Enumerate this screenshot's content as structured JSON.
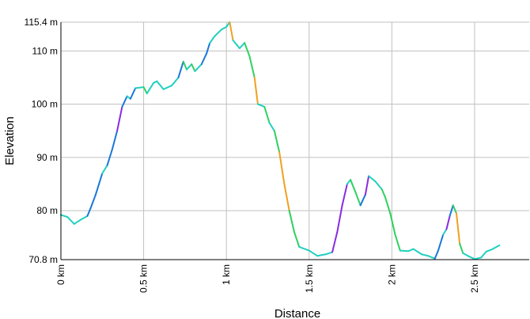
{
  "chart_data": {
    "type": "line",
    "xlabel": "Distance",
    "ylabel": "Elevation",
    "xlim": [
      0,
      2.83
    ],
    "ylim": [
      70.8,
      115.4
    ],
    "y_ticks": [
      {
        "value": 70.8,
        "label": "70.8 m"
      },
      {
        "value": 80,
        "label": "80 m"
      },
      {
        "value": 90,
        "label": "90 m"
      },
      {
        "value": 100,
        "label": "100 m"
      },
      {
        "value": 110,
        "label": "110 m"
      },
      {
        "value": 115.4,
        "label": "115.4 m"
      }
    ],
    "x_ticks": [
      {
        "value": 0,
        "label": "0 km"
      },
      {
        "value": 0.5,
        "label": "0.5 km"
      },
      {
        "value": 1,
        "label": "1 km"
      },
      {
        "value": 1.5,
        "label": "1.5 km"
      },
      {
        "value": 2,
        "label": "2 km"
      },
      {
        "value": 2.5,
        "label": "2.5 km"
      }
    ],
    "grid": true,
    "series": [
      {
        "points": [
          [
            0.0,
            79.2
          ],
          [
            0.04,
            78.8
          ],
          [
            0.08,
            77.5
          ],
          [
            0.12,
            78.3
          ],
          [
            0.16,
            79.0
          ],
          [
            0.18,
            80.5
          ],
          [
            0.21,
            83.0
          ],
          [
            0.25,
            87.0
          ],
          [
            0.28,
            88.5
          ],
          [
            0.31,
            91.5
          ],
          [
            0.34,
            95.0
          ],
          [
            0.37,
            99.5
          ],
          [
            0.4,
            101.5
          ],
          [
            0.42,
            101.0
          ],
          [
            0.45,
            103.0
          ],
          [
            0.5,
            103.2
          ],
          [
            0.52,
            102.0
          ],
          [
            0.56,
            104.0
          ],
          [
            0.58,
            104.3
          ],
          [
            0.62,
            102.8
          ],
          [
            0.67,
            103.5
          ],
          [
            0.71,
            105.0
          ],
          [
            0.74,
            108.0
          ],
          [
            0.76,
            106.5
          ],
          [
            0.79,
            107.5
          ],
          [
            0.81,
            106.2
          ],
          [
            0.85,
            107.5
          ],
          [
            0.88,
            109.5
          ],
          [
            0.9,
            111.5
          ],
          [
            0.93,
            112.8
          ],
          [
            0.97,
            114.0
          ],
          [
            1.0,
            114.5
          ],
          [
            1.02,
            115.4
          ],
          [
            1.04,
            112.0
          ],
          [
            1.08,
            110.5
          ],
          [
            1.11,
            111.5
          ],
          [
            1.14,
            109.0
          ],
          [
            1.17,
            105.0
          ],
          [
            1.19,
            100.0
          ],
          [
            1.23,
            99.5
          ],
          [
            1.26,
            96.5
          ],
          [
            1.29,
            95.0
          ],
          [
            1.32,
            91.0
          ],
          [
            1.35,
            85.0
          ],
          [
            1.38,
            80.0
          ],
          [
            1.41,
            76.0
          ],
          [
            1.44,
            73.2
          ],
          [
            1.5,
            72.5
          ],
          [
            1.55,
            71.5
          ],
          [
            1.6,
            71.8
          ],
          [
            1.64,
            72.2
          ],
          [
            1.67,
            76.0
          ],
          [
            1.7,
            81.0
          ],
          [
            1.73,
            85.0
          ],
          [
            1.75,
            85.8
          ],
          [
            1.78,
            83.5
          ],
          [
            1.81,
            81.0
          ],
          [
            1.84,
            83.0
          ],
          [
            1.86,
            86.5
          ],
          [
            1.9,
            85.5
          ],
          [
            1.94,
            84.0
          ],
          [
            1.96,
            82.5
          ],
          [
            1.99,
            79.5
          ],
          [
            2.02,
            75.5
          ],
          [
            2.05,
            72.5
          ],
          [
            2.1,
            72.4
          ],
          [
            2.13,
            72.8
          ],
          [
            2.18,
            71.8
          ],
          [
            2.22,
            71.5
          ],
          [
            2.26,
            71.0
          ],
          [
            2.28,
            72.5
          ],
          [
            2.31,
            75.5
          ],
          [
            2.33,
            76.5
          ],
          [
            2.35,
            79.0
          ],
          [
            2.37,
            81.0
          ],
          [
            2.39,
            79.5
          ],
          [
            2.41,
            73.8
          ],
          [
            2.43,
            72.0
          ],
          [
            2.46,
            71.5
          ],
          [
            2.5,
            70.9
          ],
          [
            2.54,
            71.2
          ],
          [
            2.57,
            72.3
          ],
          [
            2.61,
            72.8
          ],
          [
            2.65,
            73.5
          ]
        ]
      }
    ]
  },
  "colors": {
    "grid": "#c0c0c0",
    "axis": "#000000",
    "line_flat": "#20d0c0",
    "line_up_mild": "#1a78d8",
    "line_up_steep": "#8a2be2",
    "line_down_mild": "#30d060",
    "line_down_steep": "#f0a020"
  }
}
